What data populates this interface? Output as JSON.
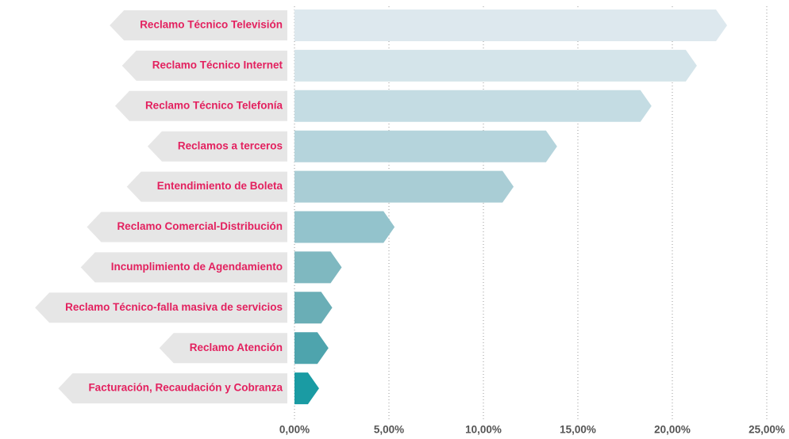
{
  "chart_data": {
    "type": "bar",
    "orientation": "horizontal",
    "categories": [
      "Reclamo Técnico Televisión",
      "Reclamo Técnico Internet",
      "Reclamo Técnico Telefonía",
      "Reclamos a terceros",
      "Entendimiento de Boleta",
      "Reclamo Comercial-Distribución",
      "Incumplimiento de Agendamiento",
      "Reclamo Técnico-falla masiva de servicios",
      "Reclamo  Atención",
      "Facturación, Recaudación y Cobranza"
    ],
    "values": [
      22.9,
      21.3,
      18.9,
      13.9,
      11.6,
      5.3,
      2.5,
      2.0,
      1.8,
      1.3
    ],
    "colors": [
      "#dde8ee",
      "#d4e4ea",
      "#c4dce3",
      "#b5d4dc",
      "#a9cdd5",
      "#93c3cc",
      "#7fb8c0",
      "#6aaeb6",
      "#4ea4ad",
      "#1a9ba3"
    ],
    "xlim": [
      0,
      25
    ],
    "xticks": [
      {
        "value": 0,
        "label": "0,00%"
      },
      {
        "value": 5,
        "label": "5,00%"
      },
      {
        "value": 10,
        "label": "10,00%"
      },
      {
        "value": 15,
        "label": "15,00%"
      },
      {
        "value": 20,
        "label": "20,00%"
      },
      {
        "value": 25,
        "label": "25,00%"
      }
    ],
    "grid": true
  }
}
